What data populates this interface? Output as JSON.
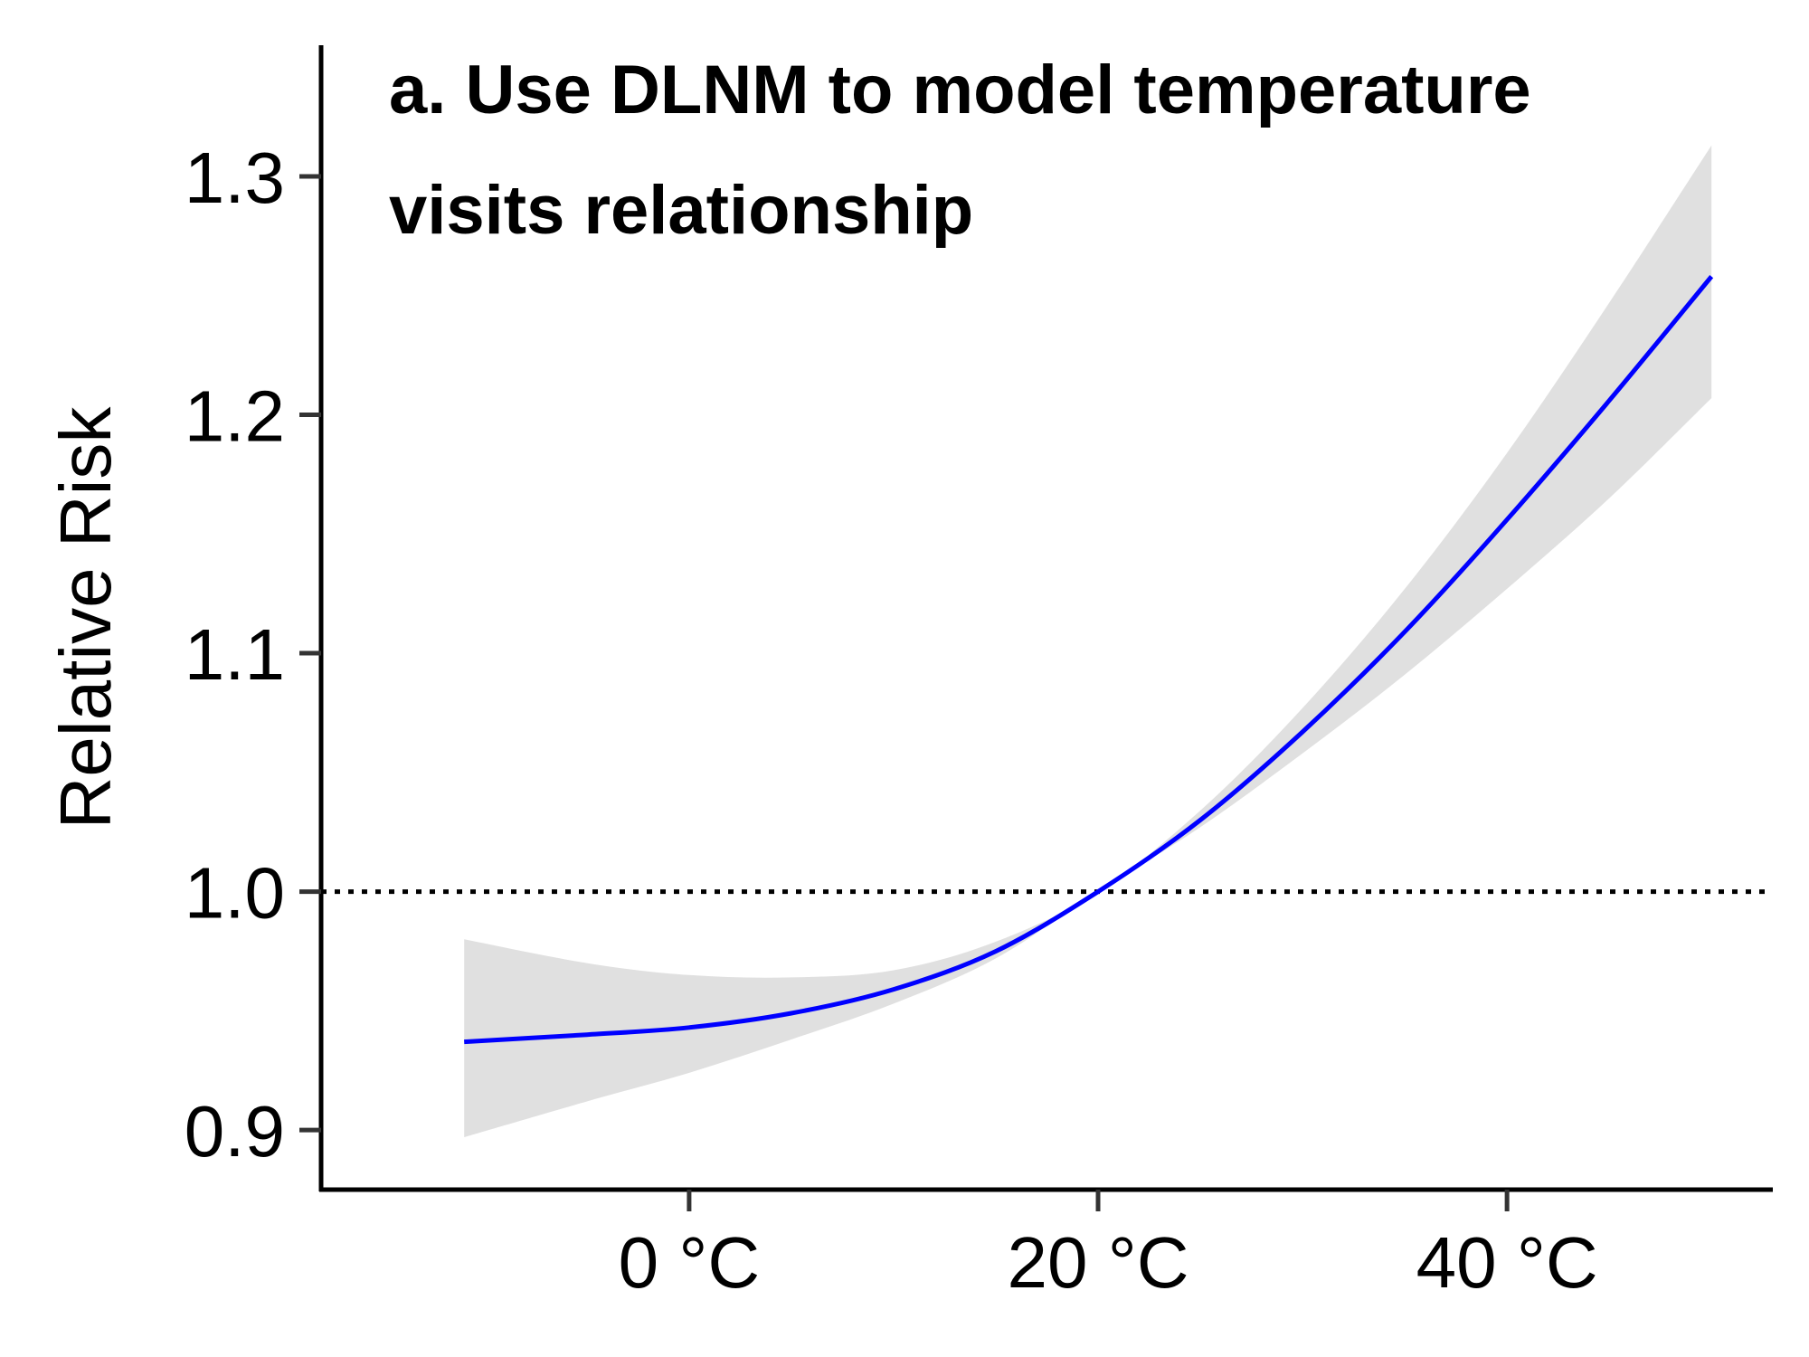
{
  "chart_data": {
    "type": "line",
    "title_lines": [
      "a. Use DLNM to model temperature",
      "visits relationship"
    ],
    "xlabel": "",
    "ylabel": "Relative Risk",
    "xlim": [
      -18,
      53
    ],
    "ylim": [
      0.875,
      1.355
    ],
    "x_ticks": [
      {
        "value": 0,
        "label": "0 °C"
      },
      {
        "value": 20,
        "label": "20 °C"
      },
      {
        "value": 40,
        "label": "40 °C"
      }
    ],
    "y_ticks": [
      {
        "value": 0.9,
        "label": "0.9"
      },
      {
        "value": 1.0,
        "label": "1.0"
      },
      {
        "value": 1.1,
        "label": "1.1"
      },
      {
        "value": 1.2,
        "label": "1.2"
      },
      {
        "value": 1.3,
        "label": "1.3"
      }
    ],
    "reference_line": {
      "y": 1.0,
      "style": "dotted"
    },
    "series": [
      {
        "color": "#0000ff",
        "x": [
          -11,
          -5,
          0,
          5,
          10,
          15,
          20,
          25,
          30,
          35,
          40,
          45,
          50
        ],
        "y": [
          0.937,
          0.94,
          0.943,
          0.949,
          0.959,
          0.975,
          1.0,
          1.03,
          1.067,
          1.109,
          1.156,
          1.206,
          1.258
        ],
        "ci_lower": [
          0.897,
          0.912,
          0.924,
          0.938,
          0.953,
          0.972,
          1.0,
          1.027,
          1.058,
          1.091,
          1.127,
          1.165,
          1.207
        ],
        "ci_upper": [
          0.98,
          0.97,
          0.965,
          0.964,
          0.967,
          0.979,
          1.0,
          1.034,
          1.077,
          1.127,
          1.184,
          1.247,
          1.313
        ]
      }
    ],
    "ci_color": "#e0e0e0",
    "grid": false,
    "legend": "none"
  }
}
